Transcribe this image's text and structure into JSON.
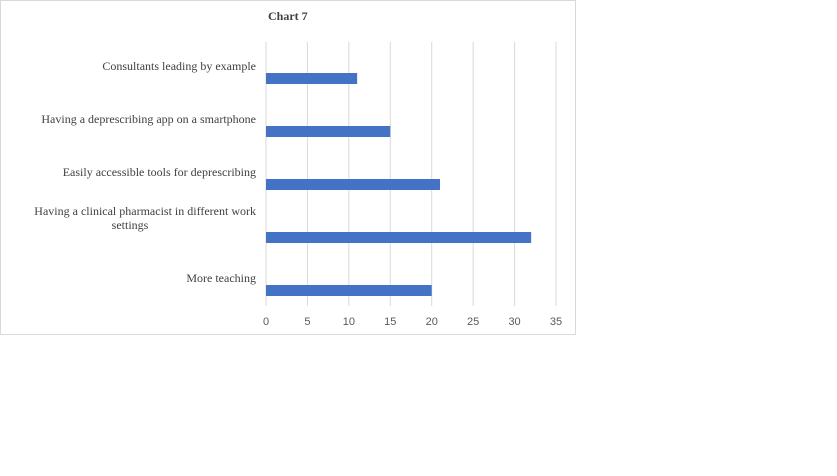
{
  "chart_data": {
    "type": "bar",
    "orientation": "horizontal",
    "title": "Chart 7",
    "categories": [
      "Consultants leading by example",
      "Having a deprescribing app on a smartphone",
      "Easily accessible tools for deprescribing",
      "Having a clinical pharmacist in different work settings",
      "More teaching"
    ],
    "category_lines": [
      [
        "Consultants leading by example"
      ],
      [
        "Having a deprescribing app on a smartphone"
      ],
      [
        "Easily accessible tools for deprescribing"
      ],
      [
        "Having a clinical pharmacist in different work",
        "settings"
      ],
      [
        "More teaching"
      ]
    ],
    "values": [
      11,
      15,
      21,
      32,
      20
    ],
    "xlim": [
      0,
      35
    ],
    "xticks": [
      0,
      5,
      10,
      15,
      20,
      25,
      30,
      35
    ],
    "grid": true,
    "bar_color": "#4472c4",
    "grid_color": "#d9d9d9"
  }
}
